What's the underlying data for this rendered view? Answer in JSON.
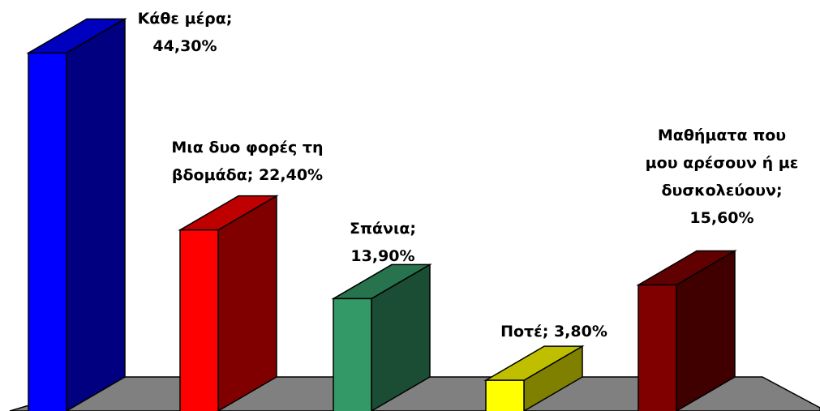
{
  "chart_data": {
    "type": "bar3d",
    "categories": [
      "Κάθε μέρα",
      "Μια δυο φορές τη βδομάδα",
      "Σπάνια",
      "Ποτέ",
      "Μαθήματα που μου αρέσουν ή με δυσκολεύουν"
    ],
    "values": [
      44.3,
      22.4,
      13.9,
      3.8,
      15.6
    ],
    "value_labels": [
      "Κάθε μέρα; 44,30%",
      "Μια δυο φορές τη βδομάδα; 22,40%",
      "Σπάνια; 13,90%",
      "Ποτέ; 3,80%",
      "Μαθήματα που μου αρέσουν ή με δυσκολεύουν; 15,60%"
    ],
    "colors": [
      "#0000ff",
      "#ff0000",
      "#339966",
      "#ffff00",
      "#800000"
    ]
  }
}
